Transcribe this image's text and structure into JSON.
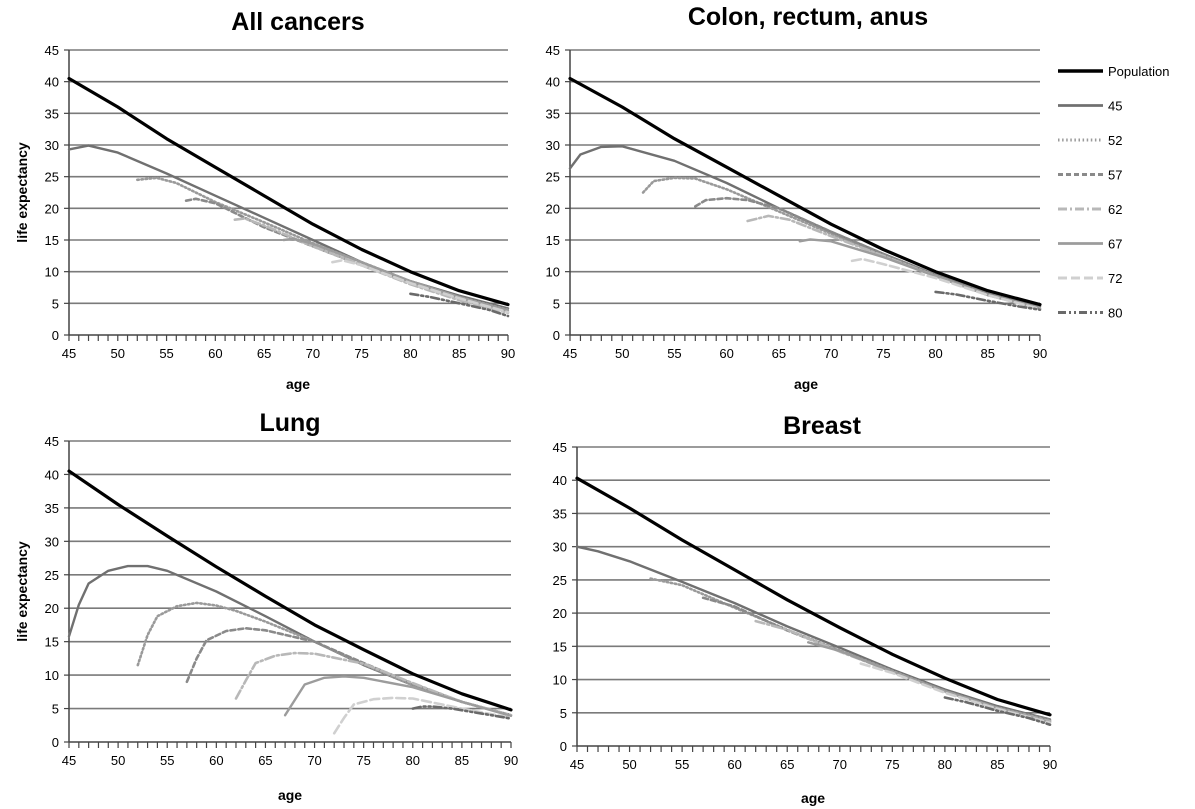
{
  "chart_data": [
    {
      "type": "line",
      "title": "All cancers",
      "xlabel": "age",
      "ylabel": "life expectancy",
      "xlim": [
        45,
        90
      ],
      "ylim": [
        0,
        45
      ],
      "xticks": [
        "45",
        "50",
        "55",
        "60",
        "65",
        "70",
        "75",
        "80",
        "85",
        "90"
      ],
      "yticks": [
        "0",
        "5",
        "10",
        "15",
        "20",
        "25",
        "30",
        "35",
        "40",
        "45"
      ],
      "grid": true,
      "series": [
        {
          "name": "Population",
          "x": [
            45,
            50,
            55,
            60,
            65,
            70,
            75,
            80,
            85,
            90
          ],
          "y": [
            40.5,
            36.0,
            31.0,
            26.5,
            22.0,
            17.5,
            13.5,
            10.0,
            7.0,
            4.8
          ]
        },
        {
          "name": "45",
          "x": [
            45,
            47,
            50,
            55,
            60,
            65,
            70,
            75,
            80,
            85,
            90
          ],
          "y": [
            29.3,
            29.9,
            28.8,
            25.5,
            22.0,
            18.5,
            15.0,
            11.5,
            8.5,
            6.2,
            4.2
          ]
        },
        {
          "name": "52",
          "x": [
            52,
            54,
            56,
            60,
            65,
            70,
            75,
            80,
            85,
            90
          ],
          "y": [
            24.5,
            24.8,
            24.0,
            21.0,
            17.8,
            14.5,
            11.5,
            8.5,
            6.0,
            4.0
          ]
        },
        {
          "name": "57",
          "x": [
            57,
            58,
            60,
            65,
            70,
            75,
            80,
            85,
            90
          ],
          "y": [
            21.2,
            21.5,
            20.8,
            17.0,
            14.0,
            11.0,
            8.2,
            5.8,
            3.8
          ]
        },
        {
          "name": "62",
          "x": [
            62,
            63,
            65,
            70,
            75,
            80,
            85,
            90
          ],
          "y": [
            18.2,
            18.4,
            17.3,
            14.0,
            11.0,
            8.0,
            5.5,
            3.5
          ]
        },
        {
          "name": "67",
          "x": [
            67,
            68,
            70,
            75,
            80,
            85,
            90
          ],
          "y": [
            15.0,
            15.2,
            14.4,
            11.5,
            8.5,
            6.0,
            3.8
          ]
        },
        {
          "name": "72",
          "x": [
            72,
            73,
            75,
            80,
            85,
            90
          ],
          "y": [
            11.5,
            11.8,
            11.0,
            8.2,
            5.8,
            3.6
          ]
        },
        {
          "name": "80",
          "x": [
            80,
            82,
            85,
            88,
            90
          ],
          "y": [
            6.5,
            6.0,
            5.0,
            4.0,
            3.0
          ]
        }
      ]
    },
    {
      "type": "line",
      "title": "Colon, rectum, anus",
      "xlabel": "age",
      "ylabel": "",
      "xlim": [
        45,
        90
      ],
      "ylim": [
        0,
        45
      ],
      "xticks": [
        "45",
        "50",
        "55",
        "60",
        "65",
        "70",
        "75",
        "80",
        "85",
        "90"
      ],
      "yticks": [
        "0",
        "5",
        "10",
        "15",
        "20",
        "25",
        "30",
        "35",
        "40",
        "45"
      ],
      "grid": true,
      "series": [
        {
          "name": "Population",
          "x": [
            45,
            50,
            55,
            60,
            65,
            70,
            75,
            80,
            85,
            90
          ],
          "y": [
            40.5,
            36.0,
            31.0,
            26.5,
            22.0,
            17.5,
            13.5,
            10.0,
            7.0,
            4.8
          ]
        },
        {
          "name": "45",
          "x": [
            45,
            46,
            48,
            50,
            55,
            60,
            65,
            70,
            75,
            80,
            85,
            90
          ],
          "y": [
            26.3,
            28.5,
            29.7,
            29.8,
            27.5,
            24.0,
            20.0,
            16.3,
            12.8,
            9.5,
            6.5,
            4.5
          ]
        },
        {
          "name": "52",
          "x": [
            52,
            53,
            55,
            57,
            60,
            65,
            70,
            75,
            80,
            85,
            90
          ],
          "y": [
            22.5,
            24.3,
            24.8,
            24.7,
            23.0,
            19.5,
            16.0,
            12.5,
            9.3,
            6.3,
            4.3
          ]
        },
        {
          "name": "57",
          "x": [
            57,
            58,
            60,
            62,
            65,
            70,
            75,
            80,
            85,
            90
          ],
          "y": [
            20.3,
            21.3,
            21.6,
            21.3,
            20.0,
            16.3,
            12.8,
            9.5,
            6.5,
            4.3
          ]
        },
        {
          "name": "62",
          "x": [
            62,
            64,
            66,
            70,
            75,
            80,
            85,
            90
          ],
          "y": [
            18.0,
            18.8,
            18.2,
            15.6,
            12.5,
            9.3,
            6.3,
            4.2
          ]
        },
        {
          "name": "67",
          "x": [
            67,
            68,
            70,
            75,
            80,
            85,
            90
          ],
          "y": [
            14.8,
            15.1,
            14.8,
            12.3,
            9.3,
            6.3,
            4.2
          ]
        },
        {
          "name": "72",
          "x": [
            72,
            73,
            75,
            80,
            85,
            90
          ],
          "y": [
            11.7,
            12.0,
            11.2,
            9.0,
            6.3,
            4.1
          ]
        },
        {
          "name": "80",
          "x": [
            80,
            82,
            85,
            88,
            90
          ],
          "y": [
            6.8,
            6.4,
            5.4,
            4.5,
            4.0
          ]
        }
      ]
    },
    {
      "type": "line",
      "title": "Lung",
      "xlabel": "age",
      "ylabel": "life expectancy",
      "xlim": [
        45,
        90
      ],
      "ylim": [
        0,
        45
      ],
      "xticks": [
        "45",
        "50",
        "55",
        "60",
        "65",
        "70",
        "75",
        "80",
        "85",
        "90"
      ],
      "yticks": [
        "0",
        "5",
        "10",
        "15",
        "20",
        "25",
        "30",
        "35",
        "40",
        "45"
      ],
      "grid": true,
      "series": [
        {
          "name": "Population",
          "x": [
            45,
            50,
            55,
            60,
            65,
            70,
            75,
            80,
            85,
            90
          ],
          "y": [
            40.5,
            35.5,
            30.8,
            26.2,
            21.8,
            17.5,
            13.8,
            10.2,
            7.2,
            4.8
          ]
        },
        {
          "name": "45",
          "x": [
            45,
            46,
            47,
            49,
            51,
            53,
            55,
            60,
            65,
            70,
            75,
            80,
            85,
            90
          ],
          "y": [
            15.8,
            20.5,
            23.7,
            25.6,
            26.3,
            26.3,
            25.6,
            22.5,
            18.8,
            15.0,
            11.5,
            8.5,
            6.0,
            4.0
          ]
        },
        {
          "name": "52",
          "x": [
            52,
            53,
            54,
            56,
            58,
            60,
            62,
            65,
            70,
            75,
            80,
            85,
            90
          ],
          "y": [
            11.5,
            16.0,
            18.8,
            20.3,
            20.8,
            20.4,
            19.6,
            18.0,
            15.0,
            11.6,
            8.5,
            6.0,
            4.0
          ]
        },
        {
          "name": "57",
          "x": [
            57,
            58,
            59,
            61,
            63,
            65,
            70,
            75,
            80,
            85,
            90
          ],
          "y": [
            9.0,
            12.5,
            15.2,
            16.6,
            17.0,
            16.7,
            15.0,
            11.8,
            8.7,
            6.0,
            4.0
          ]
        },
        {
          "name": "62",
          "x": [
            62,
            63,
            64,
            66,
            68,
            70,
            75,
            80,
            85,
            90
          ],
          "y": [
            6.5,
            9.2,
            11.8,
            12.9,
            13.3,
            13.2,
            11.7,
            8.8,
            6.0,
            4.0
          ]
        },
        {
          "name": "67",
          "x": [
            67,
            68,
            69,
            71,
            73,
            75,
            80,
            85,
            90
          ],
          "y": [
            4.0,
            6.3,
            8.6,
            9.6,
            9.8,
            9.6,
            8.2,
            6.0,
            3.9
          ]
        },
        {
          "name": "72",
          "x": [
            72,
            73,
            74,
            76,
            78,
            80,
            85,
            90
          ],
          "y": [
            1.3,
            3.6,
            5.6,
            6.4,
            6.6,
            6.5,
            5.0,
            3.6
          ]
        },
        {
          "name": "80",
          "x": [
            80,
            81,
            82,
            84,
            86,
            88,
            90
          ],
          "y": [
            5.0,
            5.3,
            5.3,
            5.0,
            4.5,
            4.0,
            3.5
          ]
        }
      ]
    },
    {
      "type": "line",
      "title": "Breast",
      "xlabel": "age",
      "ylabel": "",
      "xlim": [
        45,
        90
      ],
      "ylim": [
        0,
        45
      ],
      "xticks": [
        "45",
        "50",
        "55",
        "60",
        "65",
        "70",
        "75",
        "80",
        "85",
        "90"
      ],
      "yticks": [
        "0",
        "5",
        "10",
        "15",
        "20",
        "25",
        "30",
        "35",
        "40",
        "45"
      ],
      "grid": true,
      "series": [
        {
          "name": "Population",
          "x": [
            45,
            50,
            55,
            60,
            65,
            70,
            75,
            80,
            85,
            90
          ],
          "y": [
            40.3,
            35.8,
            31.0,
            26.5,
            22.0,
            17.8,
            13.8,
            10.2,
            7.0,
            4.7
          ]
        },
        {
          "name": "45",
          "x": [
            45,
            47,
            50,
            55,
            60,
            65,
            70,
            75,
            80,
            85,
            90
          ],
          "y": [
            30.0,
            29.3,
            27.8,
            24.7,
            21.5,
            18.0,
            14.8,
            11.5,
            8.5,
            6.0,
            4.0
          ]
        },
        {
          "name": "52",
          "x": [
            52,
            55,
            60,
            65,
            70,
            75,
            80,
            85,
            90
          ],
          "y": [
            25.2,
            24.2,
            20.8,
            17.5,
            14.4,
            11.3,
            8.3,
            5.8,
            3.9
          ]
        },
        {
          "name": "57",
          "x": [
            57,
            60,
            65,
            70,
            75,
            80,
            85,
            90
          ],
          "y": [
            22.3,
            21.0,
            17.4,
            14.3,
            11.2,
            8.3,
            5.8,
            3.8
          ]
        },
        {
          "name": "62",
          "x": [
            62,
            65,
            70,
            75,
            80,
            85,
            90
          ],
          "y": [
            18.8,
            17.5,
            14.2,
            11.2,
            8.2,
            5.7,
            3.7
          ]
        },
        {
          "name": "67",
          "x": [
            67,
            70,
            75,
            80,
            85,
            90
          ],
          "y": [
            15.6,
            14.3,
            11.2,
            8.2,
            5.7,
            3.6
          ]
        },
        {
          "name": "72",
          "x": [
            72,
            75,
            80,
            85,
            90
          ],
          "y": [
            12.4,
            11.0,
            8.0,
            5.6,
            3.5
          ]
        },
        {
          "name": "80",
          "x": [
            80,
            82,
            85,
            88,
            90
          ],
          "y": [
            7.3,
            6.6,
            5.3,
            4.2,
            3.2
          ]
        }
      ]
    }
  ],
  "legend": {
    "placement": "right",
    "entries": [
      "Population",
      "45",
      "52",
      "57",
      "62",
      "67",
      "72",
      "80"
    ]
  },
  "series_styles": {
    "Population": {
      "color": "#000000",
      "dash": "none",
      "width": 3.2
    },
    "45": {
      "color": "#707070",
      "dash": "none",
      "width": 2.4
    },
    "52": {
      "color": "#9a9a9a",
      "dash": "1.5 2.6",
      "width": 2.6
    },
    "57": {
      "color": "#8a8a8a",
      "dash": "5 3",
      "width": 2.6
    },
    "62": {
      "color": "#b8b8b8",
      "dash": "9 3 2 3",
      "width": 2.6
    },
    "67": {
      "color": "#9c9c9c",
      "dash": "none",
      "width": 2.4
    },
    "72": {
      "color": "#d0d0d0",
      "dash": "9 4",
      "width": 2.6
    },
    "80": {
      "color": "#6a6a6a",
      "dash": "8 3 2 3 2 3",
      "width": 2.6
    }
  }
}
